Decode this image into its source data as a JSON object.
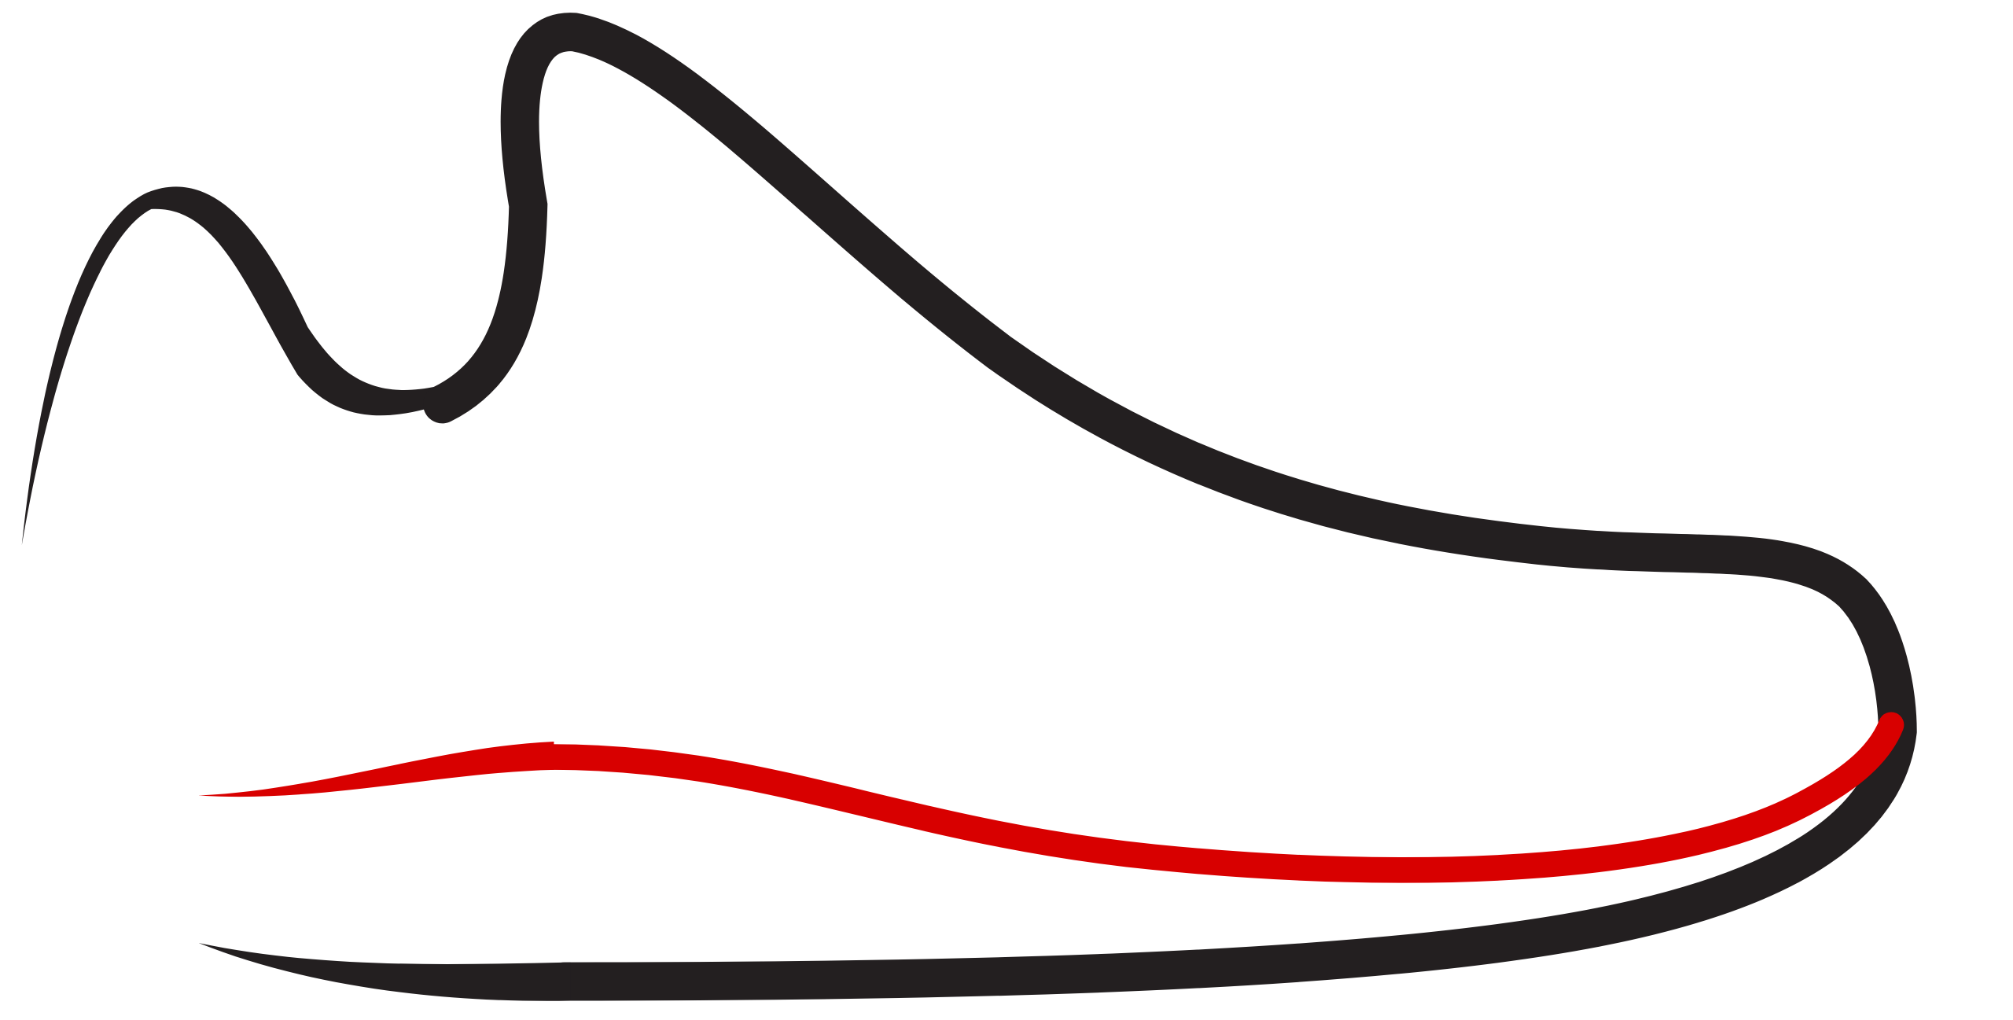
{
  "logo": {
    "name": "shoe-outline-logo",
    "colors": {
      "outline": "#231f20",
      "accent": "#d80000",
      "background": "#ffffff"
    }
  }
}
